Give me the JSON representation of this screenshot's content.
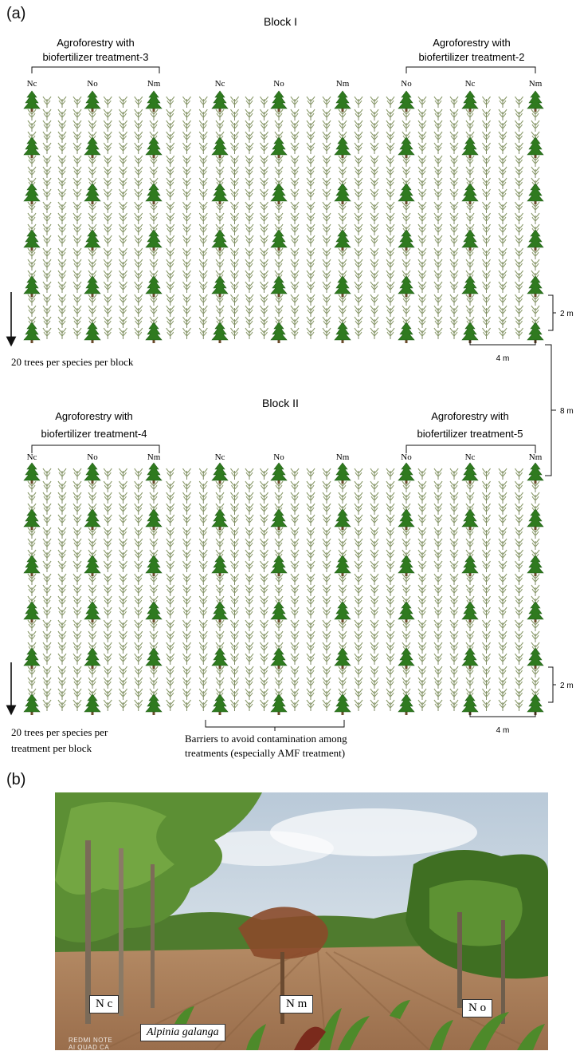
{
  "panel_a": {
    "label": "(a)",
    "block1": {
      "title": "Block I",
      "group_left": [
        "Agroforestry with",
        "biofertilizer treatment-3"
      ],
      "group_right": [
        "Agroforestry with",
        "biofertilizer treatment-2"
      ],
      "species_labels": [
        "Nc",
        "No",
        "Nm",
        "Nc",
        "No",
        "Nm",
        "No",
        "Nc",
        "Nm"
      ],
      "note": "20 trees per species per block"
    },
    "block2": {
      "title": "Block II",
      "group_left": [
        "Agroforestry with",
        "biofertilizer treatment-4"
      ],
      "group_right": [
        "Agroforestry with",
        "biofertilizer treatment-5"
      ],
      "species_labels": [
        "Nc",
        "No",
        "Nm",
        "Nc",
        "No",
        "Nm",
        "No",
        "Nc",
        "Nm"
      ],
      "note": [
        "20 trees per species per",
        "treatment per block"
      ],
      "barrier_note": [
        "Barriers to avoid contamination among",
        "treatments (especially AMF treatment)"
      ]
    },
    "dimensions": {
      "row_spacing": "2 m",
      "tree_spacing": "4 m",
      "block_spacing": "8 m"
    }
  },
  "panel_b": {
    "label": "(b)",
    "tags": {
      "nc": "N c",
      "nm": "N m",
      "no": "N o",
      "crop": "Alpinia galanga"
    },
    "watermark": [
      "REDMI NOTE",
      "AI QUAD CA"
    ]
  },
  "colors": {
    "tree": "#2f7a1f",
    "tree_dark": "#1f5c14",
    "trunk": "#6b4a2b",
    "plant": "#8a9a6a",
    "line": "#111111"
  }
}
